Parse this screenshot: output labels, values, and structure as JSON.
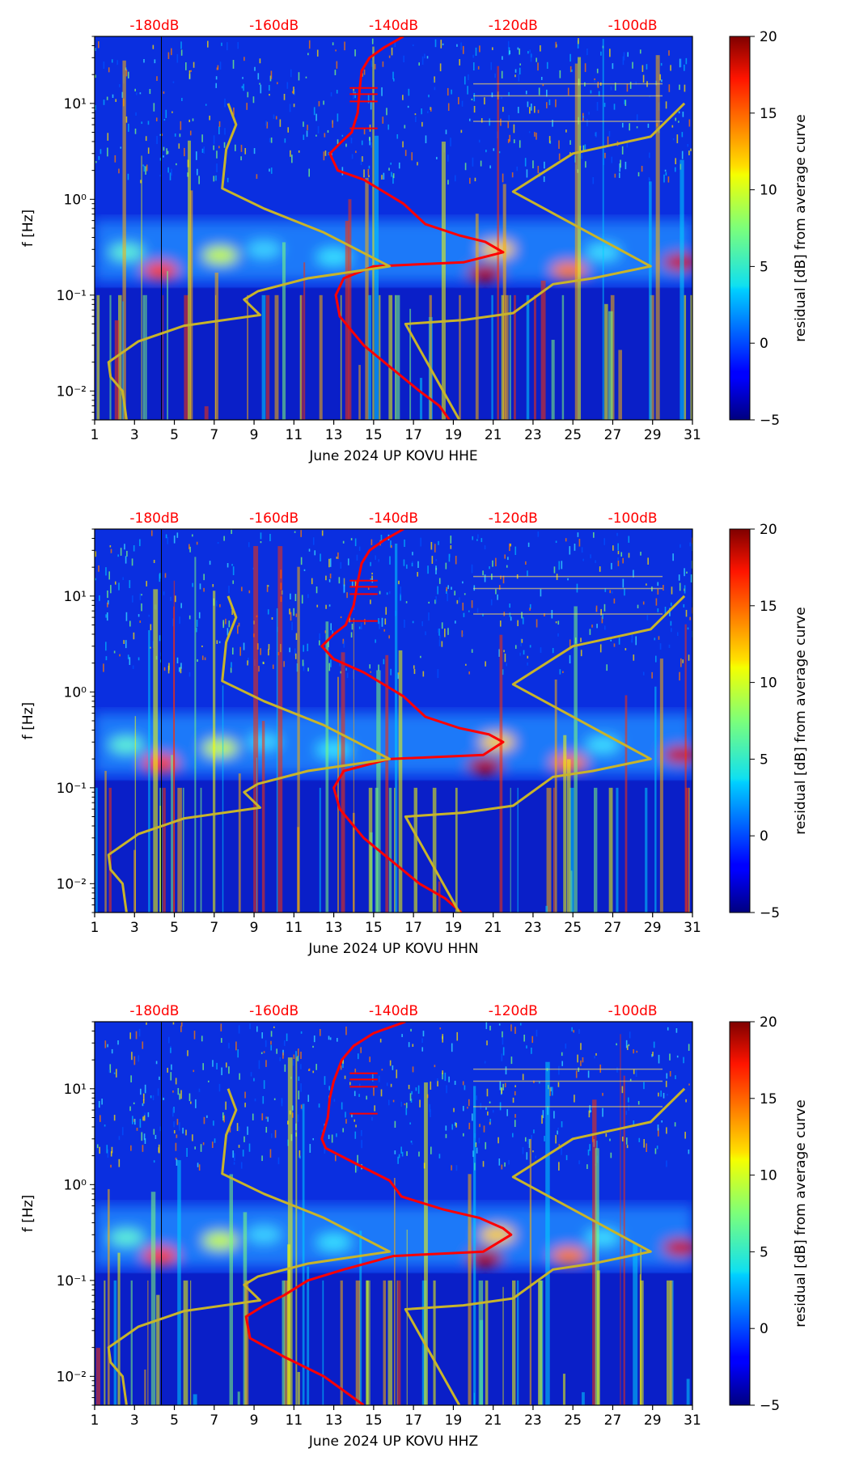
{
  "colors": {
    "red_curve": "#ff0000",
    "nlnm_curve": "#c8b42a",
    "db_labels": "#ff0000"
  },
  "chart_data": [
    {
      "type": "heatmap",
      "xlabel": "June 2024 UP KOVU  HHE",
      "ylabel": "f [Hz]",
      "x_ticks": [
        1,
        3,
        5,
        7,
        9,
        11,
        13,
        15,
        17,
        19,
        21,
        23,
        25,
        27,
        29,
        31
      ],
      "xlim": [
        1,
        31
      ],
      "ylim": [
        0.005,
        50
      ],
      "y_scale": "log",
      "y_ticks": [
        {
          "value": 0.01,
          "label": "10⁻²"
        },
        {
          "value": 0.1,
          "label": "10⁻¹"
        },
        {
          "value": 1,
          "label": "10⁰"
        },
        {
          "value": 10,
          "label": "10¹"
        }
      ],
      "top_axis_labels": [
        {
          "x": 4.0,
          "label": "-180dB"
        },
        {
          "x": 10.0,
          "label": "-160dB"
        },
        {
          "x": 16.0,
          "label": "-140dB"
        },
        {
          "x": 22.0,
          "label": "-120dB"
        },
        {
          "x": 28.0,
          "label": "-100dB"
        }
      ],
      "colorbar": {
        "label": "residual [dB] from average curve",
        "range": [
          -5,
          20
        ],
        "ticks": [
          -5,
          0,
          5,
          10,
          15,
          20
        ]
      },
      "series": [
        {
          "name": "average PSD (red)",
          "points": [
            [
              16.5,
              50
            ],
            [
              15.5,
              38
            ],
            [
              14.8,
              30
            ],
            [
              14.4,
              22
            ],
            [
              14.3,
              14
            ],
            [
              14.2,
              8
            ],
            [
              13.9,
              5
            ],
            [
              13.4,
              4
            ],
            [
              12.8,
              3
            ],
            [
              13.2,
              2
            ],
            [
              14.5,
              1.6
            ],
            [
              15.8,
              1.1
            ],
            [
              16.5,
              0.9
            ],
            [
              17.6,
              0.55
            ],
            [
              19.3,
              0.42
            ],
            [
              20.6,
              0.36
            ],
            [
              21.5,
              0.28
            ],
            [
              19.5,
              0.22
            ],
            [
              15.0,
              0.2
            ],
            [
              13.5,
              0.15
            ],
            [
              13.1,
              0.1
            ],
            [
              13.3,
              0.06
            ],
            [
              14.5,
              0.03
            ],
            [
              15.8,
              0.018
            ],
            [
              17.3,
              0.01
            ],
            [
              18.3,
              0.007
            ],
            [
              18.8,
              0.005
            ]
          ]
        },
        {
          "name": "noise models (yellow)",
          "points": [
            [
              7.7,
              10
            ],
            [
              8.1,
              6
            ],
            [
              7.6,
              3.3
            ],
            [
              7.4,
              1.3
            ],
            [
              9.5,
              0.8
            ],
            [
              12.5,
              0.45
            ],
            [
              15.8,
              0.2
            ],
            [
              11.7,
              0.15
            ],
            [
              9.2,
              0.11
            ],
            [
              8.5,
              0.09
            ],
            [
              9.3,
              0.062
            ],
            [
              5.5,
              0.048
            ],
            [
              3.2,
              0.033
            ],
            [
              1.7,
              0.02
            ],
            [
              1.8,
              0.014
            ],
            [
              2.4,
              0.01
            ],
            [
              2.6,
              0.005
            ]
          ]
        },
        {
          "name": "noise models (yellow, right)",
          "points": [
            [
              30.6,
              10
            ],
            [
              28.9,
              4.5
            ],
            [
              25.0,
              3
            ],
            [
              22.0,
              1.2
            ],
            [
              28.9,
              0.2
            ],
            [
              26.0,
              0.15
            ],
            [
              24.0,
              0.13
            ],
            [
              22.0,
              0.065
            ],
            [
              19.5,
              0.055
            ],
            [
              16.6,
              0.05
            ],
            [
              19.3,
              0.005
            ]
          ]
        }
      ]
    },
    {
      "type": "heatmap",
      "xlabel": "June 2024 UP KOVU  HHN",
      "ylabel": "f [Hz]",
      "x_ticks": [
        1,
        3,
        5,
        7,
        9,
        11,
        13,
        15,
        17,
        19,
        21,
        23,
        25,
        27,
        29,
        31
      ],
      "xlim": [
        1,
        31
      ],
      "ylim": [
        0.005,
        50
      ],
      "y_scale": "log",
      "y_ticks": [
        {
          "value": 0.01,
          "label": "10⁻²"
        },
        {
          "value": 0.1,
          "label": "10⁻¹"
        },
        {
          "value": 1,
          "label": "10⁰"
        },
        {
          "value": 10,
          "label": "10¹"
        }
      ],
      "top_axis_labels": [
        {
          "x": 4.0,
          "label": "-180dB"
        },
        {
          "x": 10.0,
          "label": "-160dB"
        },
        {
          "x": 16.0,
          "label": "-140dB"
        },
        {
          "x": 22.0,
          "label": "-120dB"
        },
        {
          "x": 28.0,
          "label": "-100dB"
        }
      ],
      "colorbar": {
        "label": "residual [dB] from average curve",
        "range": [
          -5,
          20
        ],
        "ticks": [
          -5,
          0,
          5,
          10,
          15,
          20
        ]
      },
      "series": [
        {
          "name": "average PSD (red)",
          "points": [
            [
              16.5,
              50
            ],
            [
              15.5,
              38
            ],
            [
              14.8,
              30
            ],
            [
              14.4,
              22
            ],
            [
              14.2,
              14
            ],
            [
              14.0,
              8
            ],
            [
              13.6,
              5
            ],
            [
              13.0,
              4
            ],
            [
              12.4,
              3
            ],
            [
              13.0,
              2.2
            ],
            [
              14.5,
              1.6
            ],
            [
              15.8,
              1.1
            ],
            [
              16.5,
              0.9
            ],
            [
              17.6,
              0.55
            ],
            [
              19.3,
              0.42
            ],
            [
              20.8,
              0.36
            ],
            [
              21.5,
              0.3
            ],
            [
              20.5,
              0.22
            ],
            [
              15.8,
              0.2
            ],
            [
              13.5,
              0.15
            ],
            [
              13.0,
              0.1
            ],
            [
              13.3,
              0.06
            ],
            [
              14.5,
              0.03
            ],
            [
              15.8,
              0.018
            ],
            [
              17.3,
              0.01
            ],
            [
              18.6,
              0.007
            ],
            [
              19.4,
              0.005
            ]
          ]
        },
        {
          "name": "noise models (yellow)",
          "points": [
            [
              7.7,
              10
            ],
            [
              8.1,
              6
            ],
            [
              7.6,
              3.3
            ],
            [
              7.4,
              1.3
            ],
            [
              9.5,
              0.8
            ],
            [
              12.5,
              0.45
            ],
            [
              15.8,
              0.2
            ],
            [
              11.7,
              0.15
            ],
            [
              9.2,
              0.11
            ],
            [
              8.5,
              0.09
            ],
            [
              9.3,
              0.062
            ],
            [
              5.5,
              0.048
            ],
            [
              3.2,
              0.033
            ],
            [
              1.7,
              0.02
            ],
            [
              1.8,
              0.014
            ],
            [
              2.4,
              0.01
            ],
            [
              2.6,
              0.005
            ]
          ]
        },
        {
          "name": "noise models (yellow, right)",
          "points": [
            [
              30.6,
              10
            ],
            [
              28.9,
              4.5
            ],
            [
              25.0,
              3
            ],
            [
              22.0,
              1.2
            ],
            [
              28.9,
              0.2
            ],
            [
              26.0,
              0.15
            ],
            [
              24.0,
              0.13
            ],
            [
              22.0,
              0.065
            ],
            [
              19.5,
              0.055
            ],
            [
              16.6,
              0.05
            ],
            [
              19.3,
              0.005
            ]
          ]
        }
      ]
    },
    {
      "type": "heatmap",
      "xlabel": "June 2024 UP KOVU  HHZ",
      "ylabel": "f [Hz]",
      "x_ticks": [
        1,
        3,
        5,
        7,
        9,
        11,
        13,
        15,
        17,
        19,
        21,
        23,
        25,
        27,
        29,
        31
      ],
      "xlim": [
        1,
        31
      ],
      "ylim": [
        0.005,
        50
      ],
      "y_scale": "log",
      "y_ticks": [
        {
          "value": 0.01,
          "label": "10⁻²"
        },
        {
          "value": 0.1,
          "label": "10⁻¹"
        },
        {
          "value": 1,
          "label": "10⁰"
        },
        {
          "value": 10,
          "label": "10¹"
        }
      ],
      "top_axis_labels": [
        {
          "x": 4.0,
          "label": "-180dB"
        },
        {
          "x": 10.0,
          "label": "-160dB"
        },
        {
          "x": 16.0,
          "label": "-140dB"
        },
        {
          "x": 22.0,
          "label": "-120dB"
        },
        {
          "x": 28.0,
          "label": "-100dB"
        }
      ],
      "colorbar": {
        "label": "residual [dB] from average curve",
        "range": [
          -5,
          20
        ],
        "ticks": [
          -5,
          0,
          5,
          10,
          15,
          20
        ]
      },
      "series": [
        {
          "name": "average PSD (red)",
          "points": [
            [
              16.6,
              50
            ],
            [
              15.0,
              38
            ],
            [
              14.0,
              28
            ],
            [
              13.4,
              20
            ],
            [
              13.0,
              12
            ],
            [
              12.8,
              8
            ],
            [
              12.7,
              5
            ],
            [
              12.4,
              3
            ],
            [
              12.6,
              2.4
            ],
            [
              14.0,
              1.7
            ],
            [
              15.8,
              1.1
            ],
            [
              16.4,
              0.75
            ],
            [
              18.5,
              0.55
            ],
            [
              20.3,
              0.45
            ],
            [
              21.5,
              0.35
            ],
            [
              21.9,
              0.3
            ],
            [
              20.5,
              0.2
            ],
            [
              16.0,
              0.18
            ],
            [
              13.5,
              0.13
            ],
            [
              11.7,
              0.1
            ],
            [
              10.5,
              0.07
            ],
            [
              9.5,
              0.055
            ],
            [
              8.6,
              0.042
            ],
            [
              8.8,
              0.025
            ],
            [
              10.5,
              0.016
            ],
            [
              12.5,
              0.01
            ],
            [
              14.5,
              0.005
            ]
          ]
        },
        {
          "name": "noise models (yellow)",
          "points": [
            [
              7.7,
              10
            ],
            [
              8.1,
              6
            ],
            [
              7.6,
              3.3
            ],
            [
              7.4,
              1.3
            ],
            [
              9.5,
              0.8
            ],
            [
              12.5,
              0.45
            ],
            [
              15.8,
              0.2
            ],
            [
              11.7,
              0.15
            ],
            [
              9.2,
              0.11
            ],
            [
              8.5,
              0.09
            ],
            [
              9.3,
              0.062
            ],
            [
              5.5,
              0.048
            ],
            [
              3.2,
              0.033
            ],
            [
              1.7,
              0.02
            ],
            [
              1.8,
              0.014
            ],
            [
              2.4,
              0.01
            ],
            [
              2.6,
              0.005
            ]
          ]
        },
        {
          "name": "noise models (yellow, right)",
          "points": [
            [
              30.6,
              10
            ],
            [
              28.9,
              4.5
            ],
            [
              25.0,
              3
            ],
            [
              22.0,
              1.2
            ],
            [
              28.9,
              0.2
            ],
            [
              26.0,
              0.15
            ],
            [
              24.0,
              0.13
            ],
            [
              22.0,
              0.065
            ],
            [
              19.5,
              0.055
            ],
            [
              16.6,
              0.05
            ],
            [
              19.3,
              0.005
            ]
          ]
        }
      ]
    }
  ]
}
